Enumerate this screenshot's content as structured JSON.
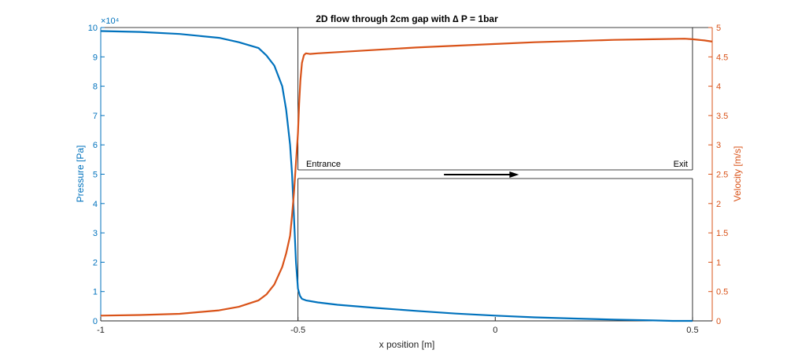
{
  "chart_data": {
    "type": "line",
    "title": "2D flow through 2cm gap with ∆ P = 1bar",
    "xlabel": "x position [m]",
    "xlim": [
      -1,
      0.55
    ],
    "xticks": [
      -1,
      -0.5,
      0,
      0.5
    ],
    "xtick_labels": [
      "-1",
      "-0.5",
      "0",
      "0.5"
    ],
    "left_axis": {
      "label": "Pressure [Pa]",
      "color": "#0072BD",
      "ylim": [
        0,
        100000
      ],
      "exponent_label": "×10⁴",
      "ticks": [
        0,
        10000,
        20000,
        30000,
        40000,
        50000,
        60000,
        70000,
        80000,
        90000,
        100000
      ],
      "tick_labels": [
        "0",
        "1",
        "2",
        "3",
        "4",
        "5",
        "6",
        "7",
        "8",
        "9",
        "10"
      ]
    },
    "right_axis": {
      "label": "Velocity [m/s]",
      "color": "#D95319",
      "ylim": [
        0,
        5
      ],
      "ticks": [
        0,
        0.5,
        1,
        1.5,
        2,
        2.5,
        3,
        3.5,
        4,
        4.5,
        5
      ],
      "tick_labels": [
        "0",
        "0.5",
        "1",
        "1.5",
        "2",
        "2.5",
        "3",
        "3.5",
        "4",
        "4.5",
        "5"
      ]
    },
    "series": [
      {
        "axis": "left",
        "color": "#0072BD",
        "x": [
          -1,
          -0.9,
          -0.8,
          -0.7,
          -0.65,
          -0.6,
          -0.58,
          -0.56,
          -0.54,
          -0.53,
          -0.52,
          -0.515,
          -0.51,
          -0.505,
          -0.5,
          -0.495,
          -0.49,
          -0.48,
          -0.45,
          -0.4,
          -0.3,
          -0.2,
          -0.1,
          0,
          0.1,
          0.2,
          0.3,
          0.4,
          0.45,
          0.5
        ],
        "y": [
          98800,
          98500,
          97800,
          96500,
          95000,
          93000,
          90500,
          87000,
          80000,
          72000,
          60000,
          50000,
          35000,
          20000,
          11000,
          8500,
          7500,
          7000,
          6300,
          5500,
          4400,
          3400,
          2500,
          1800,
          1200,
          800,
          450,
          150,
          0,
          0
        ]
      },
      {
        "axis": "right",
        "color": "#D95319",
        "x": [
          -1,
          -0.9,
          -0.8,
          -0.7,
          -0.65,
          -0.6,
          -0.58,
          -0.56,
          -0.54,
          -0.53,
          -0.52,
          -0.515,
          -0.51,
          -0.505,
          -0.5,
          -0.497,
          -0.494,
          -0.49,
          -0.485,
          -0.48,
          -0.47,
          -0.45,
          -0.4,
          -0.3,
          -0.2,
          -0.1,
          0,
          0.1,
          0.2,
          0.3,
          0.4,
          0.48,
          0.5,
          0.53,
          0.55
        ],
        "y": [
          0.09,
          0.1,
          0.12,
          0.18,
          0.24,
          0.35,
          0.45,
          0.62,
          0.92,
          1.15,
          1.45,
          1.8,
          2.2,
          2.7,
          3.2,
          3.7,
          4.1,
          4.4,
          4.53,
          4.56,
          4.55,
          4.56,
          4.58,
          4.62,
          4.66,
          4.69,
          4.72,
          4.75,
          4.77,
          4.79,
          4.8,
          4.81,
          4.8,
          4.78,
          4.76
        ]
      }
    ],
    "annotations": {
      "entrance": "Entrance",
      "exit": "Exit"
    }
  }
}
